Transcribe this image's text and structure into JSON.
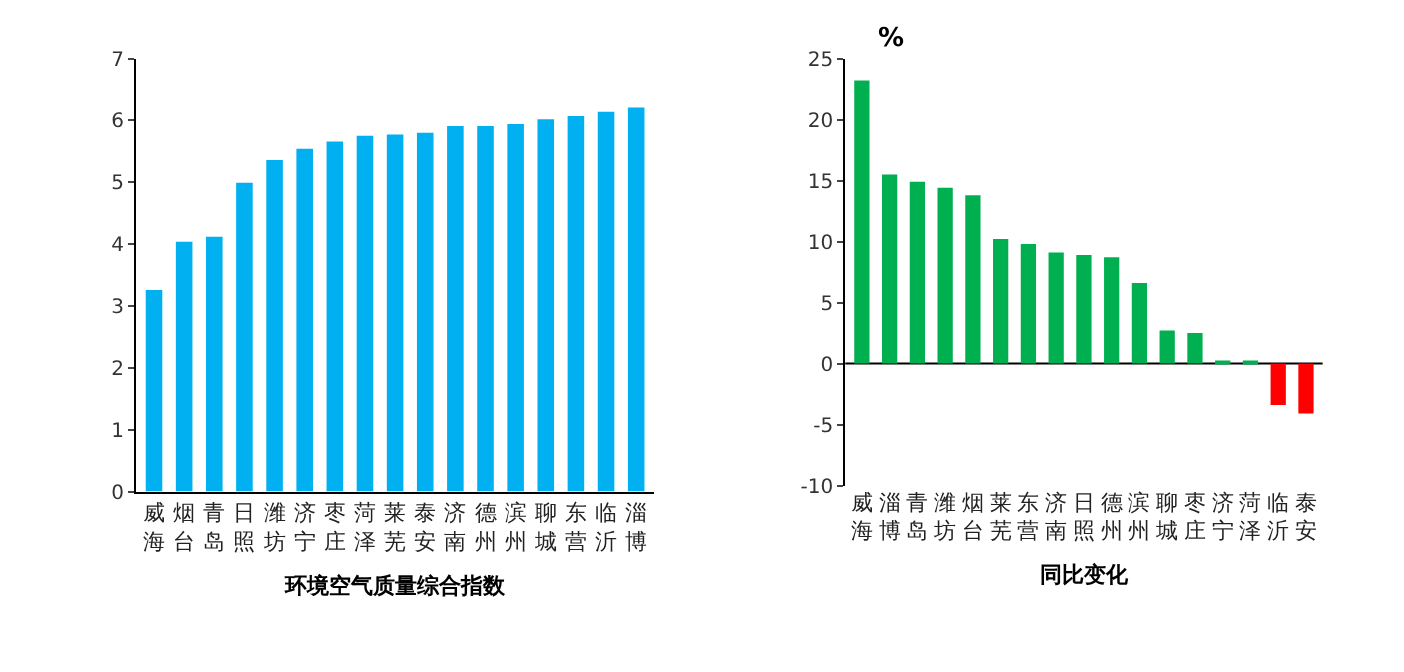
{
  "chart_data": [
    {
      "type": "bar",
      "xlabel": "环境空气质量综合指数",
      "categories": [
        "威海",
        "烟台",
        "青岛",
        "日照",
        "潍坊",
        "济宁",
        "枣庄",
        "菏泽",
        "莱芜",
        "泰安",
        "济南",
        "德州",
        "滨州",
        "聊城",
        "东营",
        "临沂",
        "淄博"
      ],
      "values": [
        3.26,
        4.04,
        4.12,
        4.99,
        5.36,
        5.54,
        5.66,
        5.75,
        5.77,
        5.8,
        5.91,
        5.91,
        5.94,
        6.02,
        6.07,
        6.14,
        6.21
      ],
      "color": "#00b0f0",
      "ylim": [
        0,
        7
      ],
      "yticks": [
        0,
        1,
        2,
        3,
        4,
        5,
        6,
        7
      ]
    },
    {
      "type": "bar",
      "xlabel": "同比变化",
      "ylabel": "%",
      "categories": [
        "威海",
        "淄博",
        "青岛",
        "潍坊",
        "烟台",
        "莱芜",
        "东营",
        "济南",
        "日照",
        "德州",
        "滨州",
        "聊城",
        "枣庄",
        "济宁",
        "菏泽",
        "临沂",
        "泰安"
      ],
      "values": [
        23.2,
        15.5,
        14.9,
        14.4,
        13.8,
        10.2,
        9.8,
        9.1,
        8.9,
        8.7,
        6.6,
        2.7,
        2.5,
        0.1,
        0.1,
        -3.4,
        -4.1
      ],
      "colors": [
        "#00b050",
        "#00b050",
        "#00b050",
        "#00b050",
        "#00b050",
        "#00b050",
        "#00b050",
        "#00b050",
        "#00b050",
        "#00b050",
        "#00b050",
        "#00b050",
        "#00b050",
        "#00b050",
        "#00b050",
        "#ff0000",
        "#ff0000"
      ],
      "ylim": [
        -10,
        25
      ],
      "yticks": [
        -10,
        -5,
        0,
        5,
        10,
        15,
        20,
        25
      ]
    }
  ]
}
